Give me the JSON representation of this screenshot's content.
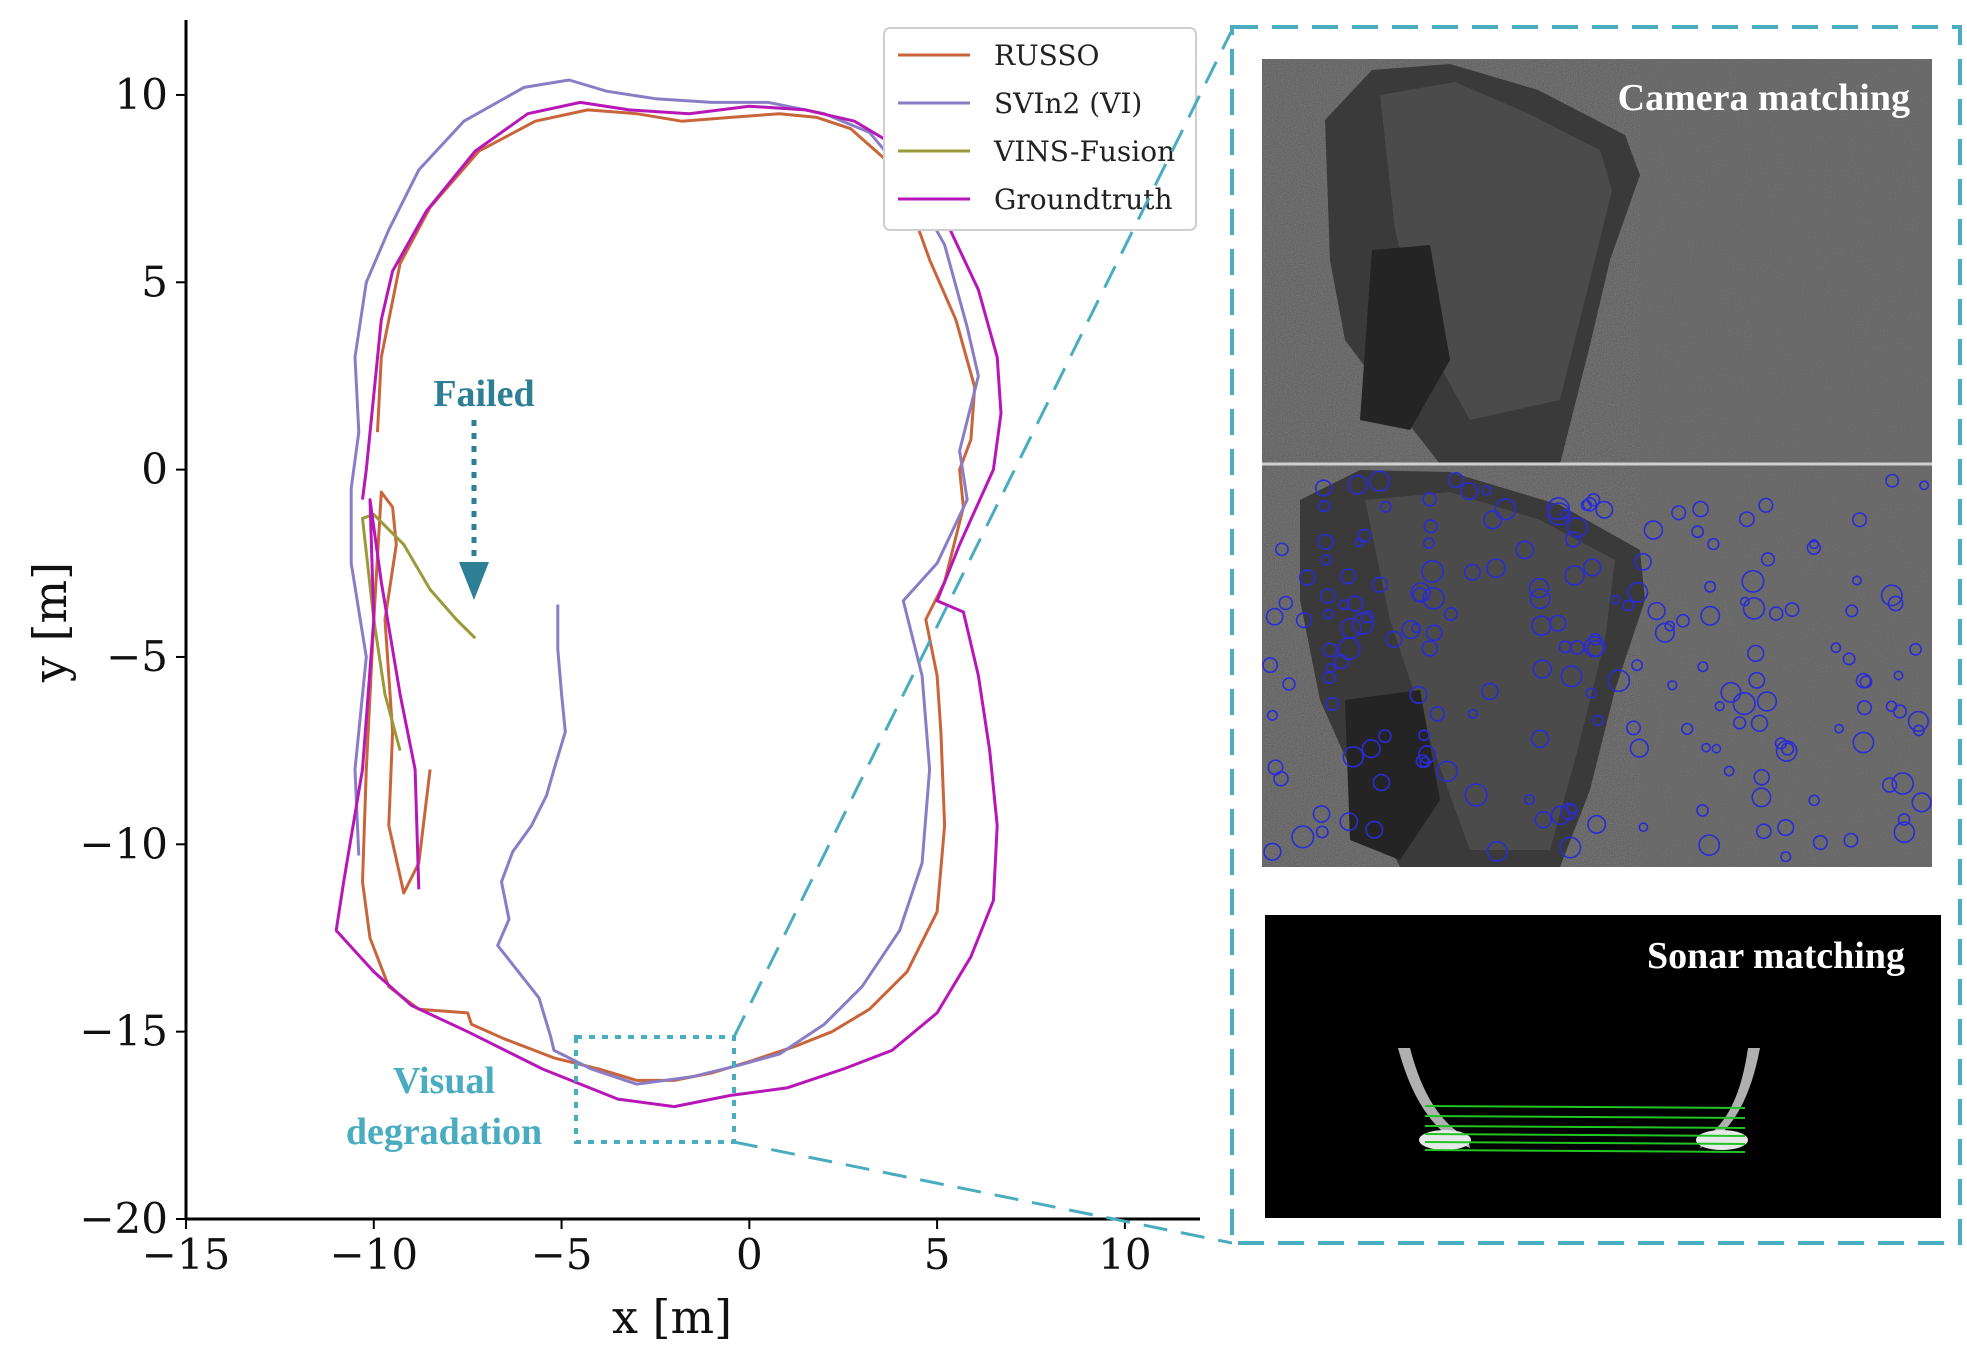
{
  "chart_data": {
    "type": "line",
    "xlabel": "x [m]",
    "ylabel": "y [m]",
    "xlim": [
      -15,
      12
    ],
    "ylim": [
      -20,
      12
    ],
    "xticks": [
      "−15",
      "−10",
      "−5",
      "0",
      "5",
      "10"
    ],
    "xtick_values": [
      -15,
      -10,
      -5,
      0,
      5,
      10
    ],
    "yticks": [
      "−20",
      "−15",
      "−10",
      "−5",
      "0",
      "5",
      "10"
    ],
    "ytick_values": [
      -20,
      -15,
      -10,
      -5,
      0,
      5,
      10
    ],
    "grid": false,
    "legend_position": "top-right",
    "series": [
      {
        "name": "RUSSO",
        "color": "#c8653a",
        "points": [
          [
            -8.5,
            -8
          ],
          [
            -8.8,
            -10.5
          ],
          [
            -9.2,
            -11.3
          ],
          [
            -9.6,
            -9.5
          ],
          [
            -9.5,
            -7
          ],
          [
            -9.7,
            -4
          ],
          [
            -9.4,
            -2
          ],
          [
            -9.5,
            -1
          ],
          [
            -9.8,
            -0.6
          ],
          [
            -10,
            -4
          ],
          [
            -10.2,
            -8
          ],
          [
            -10.3,
            -11
          ],
          [
            -10.1,
            -12.5
          ],
          [
            -9.6,
            -13.8
          ],
          [
            -8.8,
            -14.4
          ],
          [
            -7.5,
            -14.5
          ],
          [
            -7.4,
            -14.8
          ],
          [
            -6.5,
            -15.2
          ],
          [
            -5.2,
            -15.7
          ],
          [
            -4,
            -16
          ],
          [
            -3,
            -16.3
          ],
          [
            -2,
            -16.3
          ],
          [
            -1,
            -16.1
          ],
          [
            0,
            -15.8
          ],
          [
            1.2,
            -15.4
          ],
          [
            2.2,
            -15
          ],
          [
            3.2,
            -14.4
          ],
          [
            4.2,
            -13.4
          ],
          [
            5,
            -11.8
          ],
          [
            5.2,
            -9.5
          ],
          [
            5.1,
            -7
          ],
          [
            5,
            -5.5
          ],
          [
            4.7,
            -4
          ],
          [
            5.2,
            -3
          ],
          [
            5.7,
            -1
          ],
          [
            5.6,
            0
          ],
          [
            5.9,
            0.8
          ],
          [
            6,
            2.2
          ],
          [
            5.5,
            4
          ],
          [
            4.8,
            5.6
          ],
          [
            4.3,
            7
          ],
          [
            3.6,
            8.3
          ],
          [
            2.7,
            9.1
          ],
          [
            1.8,
            9.4
          ],
          [
            0.8,
            9.5
          ],
          [
            -0.5,
            9.4
          ],
          [
            -1.8,
            9.3
          ],
          [
            -3,
            9.5
          ],
          [
            -4.3,
            9.6
          ],
          [
            -5.7,
            9.3
          ],
          [
            -7.2,
            8.5
          ],
          [
            -8.5,
            7
          ],
          [
            -9.3,
            5.5
          ],
          [
            -9.5,
            4.5
          ],
          [
            -9.8,
            3
          ],
          [
            -9.9,
            1
          ]
        ]
      },
      {
        "name": "SVIn2 (VI)",
        "color": "#8a7dc6",
        "points": [
          [
            -10.4,
            -10.3
          ],
          [
            -10.5,
            -8
          ],
          [
            -10.2,
            -5
          ],
          [
            -10.6,
            -2.5
          ],
          [
            -10.6,
            -0.5
          ],
          [
            -10.4,
            1
          ],
          [
            -10.5,
            3
          ],
          [
            -10.2,
            5
          ],
          [
            -9.6,
            6.4
          ],
          [
            -8.8,
            8
          ],
          [
            -7.6,
            9.3
          ],
          [
            -6,
            10.2
          ],
          [
            -4.8,
            10.4
          ],
          [
            -3.8,
            10.1
          ],
          [
            -2.5,
            9.9
          ],
          [
            -1,
            9.8
          ],
          [
            0.5,
            9.8
          ],
          [
            2,
            9.5
          ],
          [
            3.2,
            9
          ],
          [
            4.2,
            7.8
          ],
          [
            5.2,
            6
          ],
          [
            5.8,
            3.8
          ],
          [
            6.1,
            2.5
          ],
          [
            5.6,
            0.5
          ],
          [
            5.8,
            -0.8
          ],
          [
            5,
            -2.5
          ],
          [
            4.1,
            -3.5
          ],
          [
            4.6,
            -5.5
          ],
          [
            4.8,
            -8
          ],
          [
            4.6,
            -10.5
          ],
          [
            4,
            -12.3
          ],
          [
            3,
            -13.8
          ],
          [
            2,
            -14.8
          ],
          [
            0.8,
            -15.6
          ],
          [
            -0.3,
            -15.9
          ],
          [
            -1.5,
            -16.2
          ],
          [
            -3,
            -16.4
          ],
          [
            -4.2,
            -16
          ],
          [
            -5.2,
            -15.5
          ],
          [
            -5.3,
            -15.1
          ],
          [
            -5.6,
            -14.1
          ],
          [
            -6.7,
            -12.7
          ],
          [
            -6.4,
            -12
          ],
          [
            -6.6,
            -11
          ],
          [
            -6.3,
            -10.2
          ],
          [
            -5.8,
            -9.5
          ],
          [
            -5.4,
            -8.7
          ],
          [
            -5.2,
            -8
          ],
          [
            -4.9,
            -7
          ],
          [
            -5,
            -6
          ],
          [
            -5.1,
            -4.8
          ],
          [
            -5.1,
            -3.6
          ]
        ]
      },
      {
        "name": "VINS-Fusion",
        "color": "#9a9a3a",
        "points": [
          [
            -9.3,
            -7.5
          ],
          [
            -9.7,
            -6
          ],
          [
            -10,
            -4
          ],
          [
            -10.3,
            -1.3
          ],
          [
            -10,
            -1.2
          ],
          [
            -9.2,
            -2
          ],
          [
            -8.5,
            -3.2
          ],
          [
            -7.8,
            -4
          ],
          [
            -7.3,
            -4.5
          ]
        ]
      },
      {
        "name": "Groundtruth",
        "color": "#b817b8",
        "points": [
          [
            -8.8,
            -11.2
          ],
          [
            -8.9,
            -8
          ],
          [
            -9.3,
            -6
          ],
          [
            -9.8,
            -3
          ],
          [
            -10.1,
            -0.8
          ],
          [
            -10,
            -4
          ],
          [
            -10.3,
            -8
          ],
          [
            -10.8,
            -11
          ],
          [
            -11,
            -12.3
          ],
          [
            -10,
            -13.4
          ],
          [
            -9,
            -14.3
          ],
          [
            -7.5,
            -15
          ],
          [
            -5.5,
            -16
          ],
          [
            -3.5,
            -16.8
          ],
          [
            -2,
            -17
          ],
          [
            -0.5,
            -16.7
          ],
          [
            1,
            -16.5
          ],
          [
            2.5,
            -16
          ],
          [
            3.8,
            -15.5
          ],
          [
            5,
            -14.5
          ],
          [
            5.9,
            -13
          ],
          [
            6.5,
            -11.5
          ],
          [
            6.6,
            -9.5
          ],
          [
            6.4,
            -7.5
          ],
          [
            6.1,
            -5.5
          ],
          [
            5.7,
            -3.8
          ],
          [
            5,
            -3.5
          ],
          [
            5.6,
            -2
          ],
          [
            6.5,
            0
          ],
          [
            6.7,
            1.5
          ],
          [
            6.6,
            3
          ],
          [
            6.1,
            4.8
          ],
          [
            5.3,
            6.5
          ],
          [
            4.6,
            7.8
          ],
          [
            3.8,
            8.7
          ],
          [
            2.8,
            9.3
          ],
          [
            1.5,
            9.6
          ],
          [
            0,
            9.7
          ],
          [
            -1.6,
            9.5
          ],
          [
            -3.2,
            9.6
          ],
          [
            -4.5,
            9.8
          ],
          [
            -5.9,
            9.5
          ],
          [
            -7.3,
            8.5
          ],
          [
            -8.6,
            6.9
          ],
          [
            -9.5,
            5.3
          ],
          [
            -9.8,
            4
          ],
          [
            -10,
            2
          ],
          [
            -10.2,
            0
          ],
          [
            -10.3,
            -0.8
          ]
        ]
      }
    ],
    "annotations": [
      {
        "text": "Failed",
        "color": "#2e7f93"
      },
      {
        "text": "Visual\ndegradation",
        "color": "#4aacbf"
      }
    ]
  },
  "annotations": {
    "failed": "Failed",
    "visual_line1": "Visual",
    "visual_line2": "degradation"
  },
  "panels": {
    "camera_title": "Camera matching",
    "sonar_title": "Sonar matching"
  },
  "colors": {
    "accent": "#4aacbf",
    "failed": "#2e7f93"
  }
}
